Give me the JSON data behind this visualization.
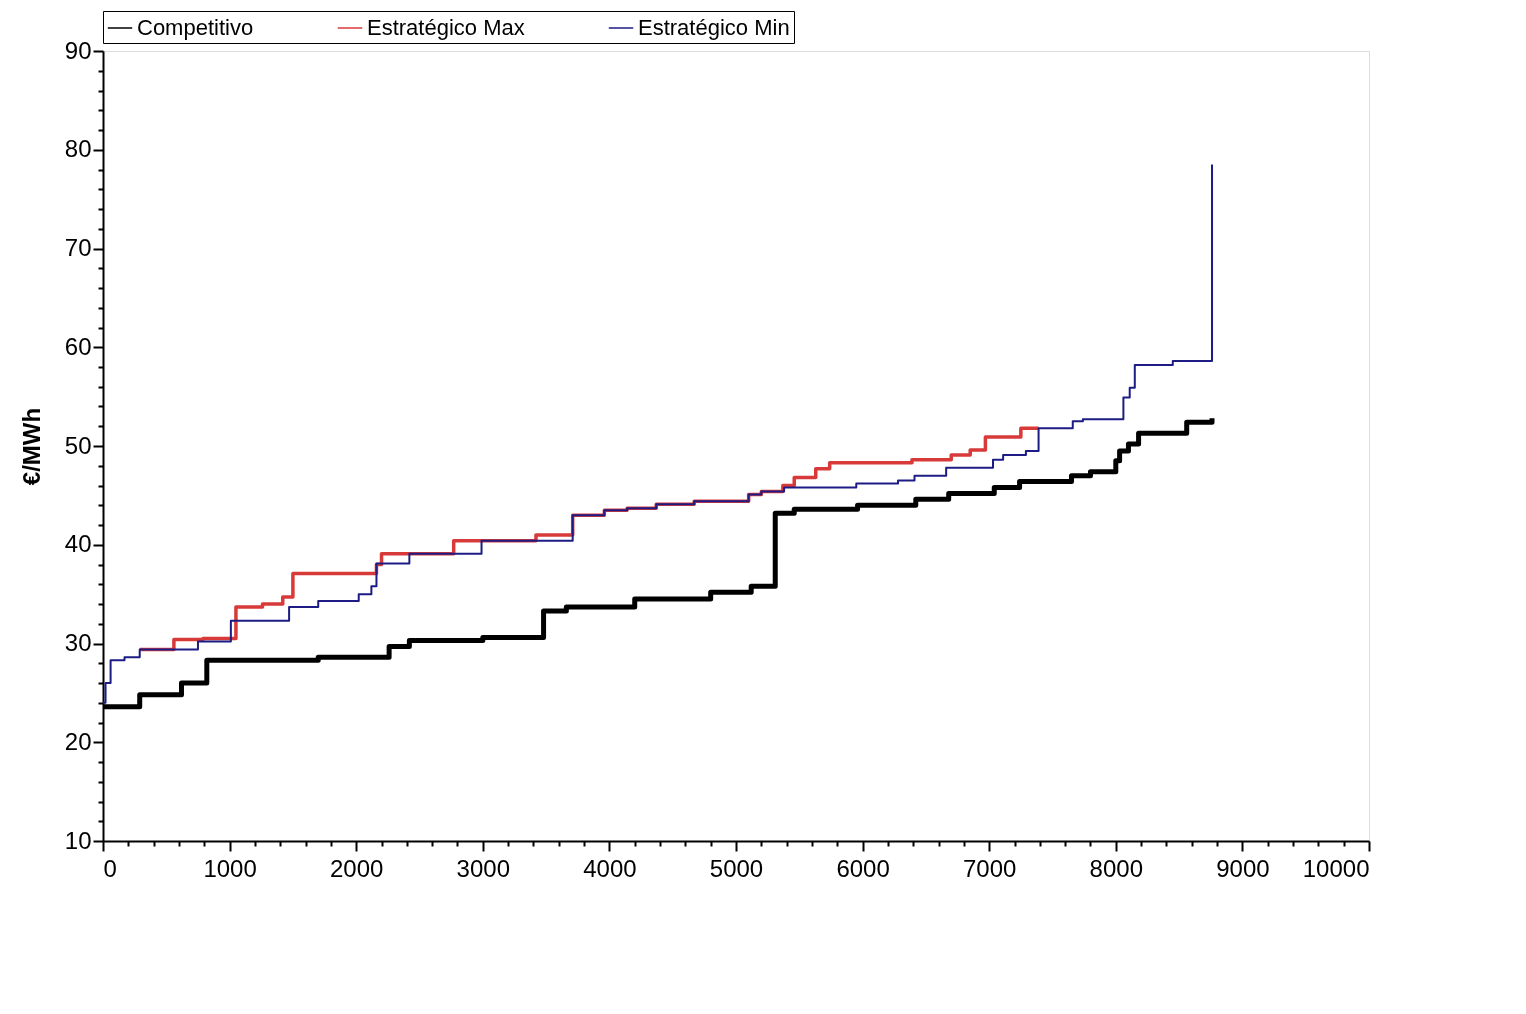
{
  "chart_data": {
    "type": "step",
    "ylabel": "€/MWh",
    "legend": "top",
    "grid": false,
    "line_style": "solid",
    "marker": "none",
    "xlim": [
      0,
      10000
    ],
    "ylim": [
      10,
      90
    ],
    "xticks": [
      0,
      {
        "value": 200,
        "label": null
      },
      {
        "value": 400,
        "label": null
      },
      {
        "value": 600,
        "label": null
      },
      {
        "value": 800,
        "label": null
      },
      1000,
      {
        "value": 1200,
        "label": null
      },
      {
        "value": 1400,
        "label": null
      },
      {
        "value": 1600,
        "label": null
      },
      {
        "value": 1800,
        "label": null
      },
      2000,
      {
        "value": 2200,
        "label": null
      },
      {
        "value": 2400,
        "label": null
      },
      {
        "value": 2600,
        "label": null
      },
      {
        "value": 2800,
        "label": null
      },
      3000,
      {
        "value": 3200,
        "label": null
      },
      {
        "value": 3400,
        "label": null
      },
      {
        "value": 3600,
        "label": null
      },
      {
        "value": 3800,
        "label": null
      },
      4000,
      {
        "value": 4200,
        "label": null
      },
      {
        "value": 4400,
        "label": null
      },
      {
        "value": 4600,
        "label": null
      },
      {
        "value": 4800,
        "label": null
      },
      5000,
      {
        "value": 5200,
        "label": null
      },
      {
        "value": 5400,
        "label": null
      },
      {
        "value": 5600,
        "label": null
      },
      {
        "value": 5800,
        "label": null
      },
      6000,
      {
        "value": 6200,
        "label": null
      },
      {
        "value": 6400,
        "label": null
      },
      {
        "value": 6600,
        "label": null
      },
      {
        "value": 6800,
        "label": null
      },
      7000,
      {
        "value": 7200,
        "label": null
      },
      {
        "value": 7400,
        "label": null
      },
      {
        "value": 7600,
        "label": null
      },
      {
        "value": 7800,
        "label": null
      },
      8000,
      {
        "value": 8200,
        "label": null
      },
      {
        "value": 8400,
        "label": null
      },
      {
        "value": 8600,
        "label": null
      },
      {
        "value": 8800,
        "label": null
      },
      9000,
      {
        "value": 9200,
        "label": null
      },
      {
        "value": 9400,
        "label": null
      },
      {
        "value": 9600,
        "label": null
      },
      {
        "value": 9800,
        "label": null
      },
      10000
    ],
    "yticks": [
      10,
      {
        "value": 12,
        "label": null
      },
      {
        "value": 14,
        "label": null
      },
      {
        "value": 16,
        "label": null
      },
      {
        "value": 18,
        "label": null
      },
      20,
      {
        "value": 22,
        "label": null
      },
      {
        "value": 24,
        "label": null
      },
      {
        "value": 26,
        "label": null
      },
      {
        "value": 28,
        "label": null
      },
      30,
      {
        "value": 32,
        "label": null
      },
      {
        "value": 34,
        "label": null
      },
      {
        "value": 36,
        "label": null
      },
      {
        "value": 38,
        "label": null
      },
      40,
      {
        "value": 42,
        "label": null
      },
      {
        "value": 44,
        "label": null
      },
      {
        "value": 46,
        "label": null
      },
      {
        "value": 48,
        "label": null
      },
      50,
      {
        "value": 52,
        "label": null
      },
      {
        "value": 54,
        "label": null
      },
      {
        "value": 56,
        "label": null
      },
      {
        "value": 58,
        "label": null
      },
      60,
      {
        "value": 62,
        "label": null
      },
      {
        "value": 64,
        "label": null
      },
      {
        "value": 66,
        "label": null
      },
      {
        "value": 68,
        "label": null
      },
      70,
      {
        "value": 72,
        "label": null
      },
      {
        "value": 74,
        "label": null
      },
      {
        "value": 76,
        "label": null
      },
      {
        "value": 78,
        "label": null
      },
      80,
      {
        "value": 82,
        "label": null
      },
      {
        "value": 84,
        "label": null
      },
      {
        "value": 86,
        "label": null
      },
      {
        "value": 88,
        "label": null
      },
      90
    ],
    "series": [
      {
        "name": "Competitivo",
        "color": "#000000",
        "x": [
          0,
          290,
          620,
          820,
          1700,
          2260,
          2420,
          3000,
          3480,
          3660,
          4200,
          4800,
          5120,
          5310,
          5460,
          5960,
          6420,
          6680,
          7040,
          7240,
          7650,
          7800,
          8000,
          8030,
          8100,
          8180,
          8560,
          8760
        ],
        "values": [
          23.6,
          24.8,
          26.0,
          28.3,
          28.6,
          29.7,
          30.3,
          30.6,
          33.3,
          33.7,
          34.5,
          35.2,
          35.8,
          43.2,
          43.6,
          44.0,
          44.6,
          45.2,
          45.8,
          46.4,
          47.0,
          47.4,
          48.5,
          49.5,
          50.2,
          51.3,
          52.4,
          52.8
        ]
      },
      {
        "name": "Estratégico Max",
        "color": "#d83a3a",
        "x": [
          290,
          560,
          790,
          1050,
          1260,
          1420,
          1500,
          2160,
          2200,
          2770,
          3420,
          3710,
          3960,
          4140,
          4370,
          4670,
          5100,
          5200,
          5370,
          5460,
          5630,
          5740,
          6390,
          6700,
          6850,
          6970,
          7250,
          7390
        ],
        "values": [
          29.4,
          30.4,
          30.5,
          33.7,
          34.0,
          34.7,
          37.1,
          38.0,
          39.1,
          40.4,
          41.0,
          43.0,
          43.5,
          43.7,
          44.1,
          44.4,
          45.1,
          45.4,
          46.0,
          46.8,
          47.7,
          48.3,
          48.6,
          49.1,
          49.6,
          50.9,
          51.8,
          51.8
        ]
      },
      {
        "name": "Estratégico Min",
        "color": "#1c1c84",
        "x": [
          0,
          20,
          60,
          170,
          290,
          750,
          1010,
          1470,
          1700,
          2020,
          2120,
          2160,
          2420,
          2990,
          3710,
          3960,
          4140,
          4370,
          4670,
          5100,
          5200,
          5380,
          5950,
          6280,
          6410,
          6660,
          7030,
          7110,
          7290,
          7390,
          7660,
          7740,
          8060,
          8110,
          8150,
          8450,
          8760
        ],
        "values": [
          24.0,
          26.0,
          28.3,
          28.6,
          29.4,
          30.2,
          32.3,
          33.7,
          34.3,
          35.0,
          35.8,
          38.1,
          39.1,
          40.4,
          43.0,
          43.5,
          43.7,
          44.1,
          44.4,
          45.1,
          45.4,
          45.8,
          46.2,
          46.5,
          47.0,
          47.8,
          48.6,
          49.1,
          49.5,
          51.8,
          52.5,
          52.7,
          54.9,
          55.9,
          58.2,
          58.6,
          78.5
        ]
      }
    ]
  }
}
